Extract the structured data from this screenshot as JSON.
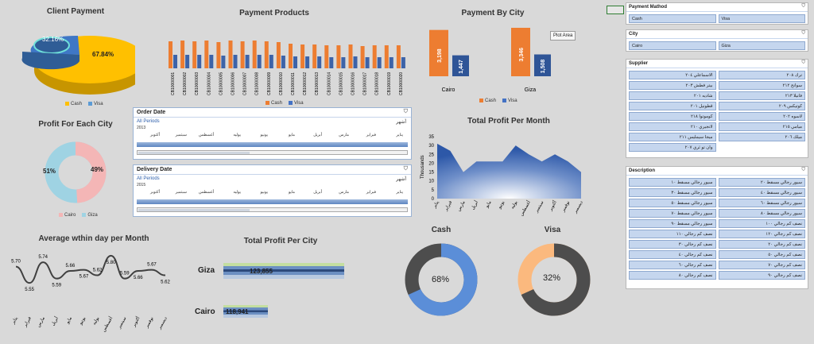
{
  "titles": {
    "client_payment": "Client Payment",
    "payment_products": "Payment Products",
    "payment_by_city": "Payment By City",
    "profit_each_city": "Profit For Each City",
    "total_profit_month": "Total Profit Per Month",
    "avg_within_day": "Average wthin day per Month",
    "total_profit_city": "Total Profit Per City",
    "cash": "Cash",
    "visa": "Visa"
  },
  "colors": {
    "cash": "#ed7d31",
    "visa": "#4472c4",
    "pie_main": "#ffc000",
    "pie_small": "#5b9bd5",
    "cairo": "#f4b6b6",
    "giza": "#9fd3e3"
  },
  "client_payment": {
    "slices": [
      {
        "label": "67.84%",
        "value": 67.84,
        "series": "Cash"
      },
      {
        "label": "32.16%",
        "value": 32.16,
        "series": "Visa"
      }
    ],
    "legend": [
      "Cash",
      "Visa"
    ]
  },
  "payment_products": {
    "legend": [
      "Cash",
      "Visa"
    ],
    "products": [
      "CB10000001",
      "CB10000002",
      "CB10000003",
      "CB10000004",
      "CB10000005",
      "CB10000006",
      "CB10000007",
      "CB10000008",
      "CB10000009",
      "CB10000010",
      "CB10000011",
      "CB10000012",
      "CB10000013",
      "CB10000014",
      "CB10000015",
      "CB10000016",
      "CB10000017",
      "CB10000018",
      "CB10000019",
      "CB10000020"
    ]
  },
  "payment_by_city": {
    "legend": [
      "Cash",
      "Visa"
    ],
    "tooltip": "Plot Area",
    "cities": [
      {
        "name": "Cairo",
        "cash": 3198,
        "visa": 1447,
        "cash_label": "3,198",
        "visa_label": "1,447"
      },
      {
        "name": "Giza",
        "cash": 3346,
        "visa": 1508,
        "cash_label": "3,346",
        "visa_label": "1,508"
      }
    ]
  },
  "profit_each_city": {
    "legend": [
      "Cairo",
      "Giza"
    ],
    "slices": [
      {
        "name": "Giza",
        "value": 51,
        "label": "51%"
      },
      {
        "name": "Cairo",
        "value": 49,
        "label": "49%"
      }
    ]
  },
  "order_timeline": {
    "title": "Order Date",
    "period": "All Periods",
    "level": "أشهر",
    "year": "2013",
    "months": [
      "يناير",
      "فبراير",
      "مارس",
      "أبريل",
      "مايو",
      "يونيو",
      "يوليه",
      "أغسطس",
      "سبتمبر",
      "أكتوبر"
    ]
  },
  "delivery_timeline": {
    "title": "Delivery Date",
    "period": "All Periods",
    "level": "أشهر",
    "year": "2015",
    "months": [
      "يناير",
      "فبراير",
      "مارس",
      "أبريل",
      "مايو",
      "يونيو",
      "يوليه",
      "أغسطس",
      "سبتمبر",
      "أكتوبر"
    ]
  },
  "total_profit_month": {
    "ylabel": "Thousands",
    "y_ticks": [
      "35",
      "30",
      "25",
      "20",
      "15",
      "10",
      "5",
      "0"
    ],
    "months": [
      "يناير",
      "فبراير",
      "مارس",
      "أبريل",
      "مايو",
      "يونيو",
      "يوليه",
      "أغسطس",
      "سبتمبر",
      "أكتوبر",
      "نوفمبر",
      "ديسمبر"
    ]
  },
  "avg_within_day": {
    "months": [
      "يناير",
      "فبراير",
      "مارس",
      "أبريل",
      "مايو",
      "يونيو",
      "يوليه",
      "أغسطس",
      "سبتمبر",
      "أكتوبر",
      "نوفمبر",
      "ديسمبر"
    ],
    "values": [
      5.7,
      5.55,
      5.74,
      5.59,
      5.66,
      5.67,
      5.62,
      5.8,
      5.59,
      5.66,
      5.67,
      5.62
    ],
    "labels": [
      "5.70",
      "5.55",
      "5.74",
      "5.59",
      "5.66",
      "5.67",
      "5.62",
      "5.80",
      "5.59",
      "5.66",
      "5.67",
      "5.62"
    ]
  },
  "total_profit_city": {
    "rows": [
      {
        "city": "Giza",
        "value": 123855,
        "label": "123,855"
      },
      {
        "city": "Cairo",
        "value": 118941,
        "label": "118,941"
      }
    ]
  },
  "cash_donut": {
    "value": 68,
    "label": "68%",
    "color": "#5b8ed8",
    "rest": "#4d4d4d"
  },
  "visa_donut": {
    "value": 32,
    "label": "32%",
    "color": "#fbb97e",
    "rest": "#4d4d4d"
  },
  "slicers": {
    "payment_method": {
      "title": "Payment Mathod",
      "items": [
        "Cash",
        "Visa"
      ]
    },
    "city": {
      "title": "City",
      "items": [
        "Cairo",
        "Giza"
      ]
    },
    "supplier": {
      "title": "Supplier",
      "items": [
        "الاسماعلي ٢٠٤",
        "ترك ٢٠٨",
        "بيتر فطش ٢٠٣",
        "سوانح ٢١٢",
        "شاديه ٢٠١",
        "فانيلا ٢١٣",
        "قطونيل ٢٠١",
        "كوتيكس ٢٠٩",
        "كوموتوا ٢١٨",
        "لاسوه ٢٠٢",
        "لانجيري ٢١٠",
        "ميامي ٢١٥",
        "ميجا سيمليس ٢١١",
        "ميلك ٢٠٦",
        "وان تو ثري ٢٠٧"
      ]
    },
    "description": {
      "title": "Description",
      "items": [
        "سيور رجالي مسقط ١٠",
        "سيور رجالي مسقط ٢٠",
        "سيور رجالي مسقط ٣٠",
        "سيور رجالي مسقط ٤٠",
        "سيور رجالي مسقط ٥٠",
        "سيور رجالي مسقط ٦٠",
        "سيور رجالي مسقط ٧٠",
        "سيور رجالي مسقط ٨٠",
        "سيور رجالي مسقط ٩٠",
        "نصف كم رجالي ١٠٠",
        "نصف كم رجالي ١١٠",
        "نصف كم رجالي ١٢٠",
        "نصف كم رجالي ٣٠",
        "نصف كم رجالي ٢٠",
        "نصف كم رجالي ٤٠",
        "نصف كم رجالي ٥٠",
        "نصف كم رجالي ٦٠",
        "نصف كم رجالي ٧٠",
        "نصف كم رجالي ٨٠",
        "نصف كم رجالي ٩٠"
      ]
    }
  }
}
